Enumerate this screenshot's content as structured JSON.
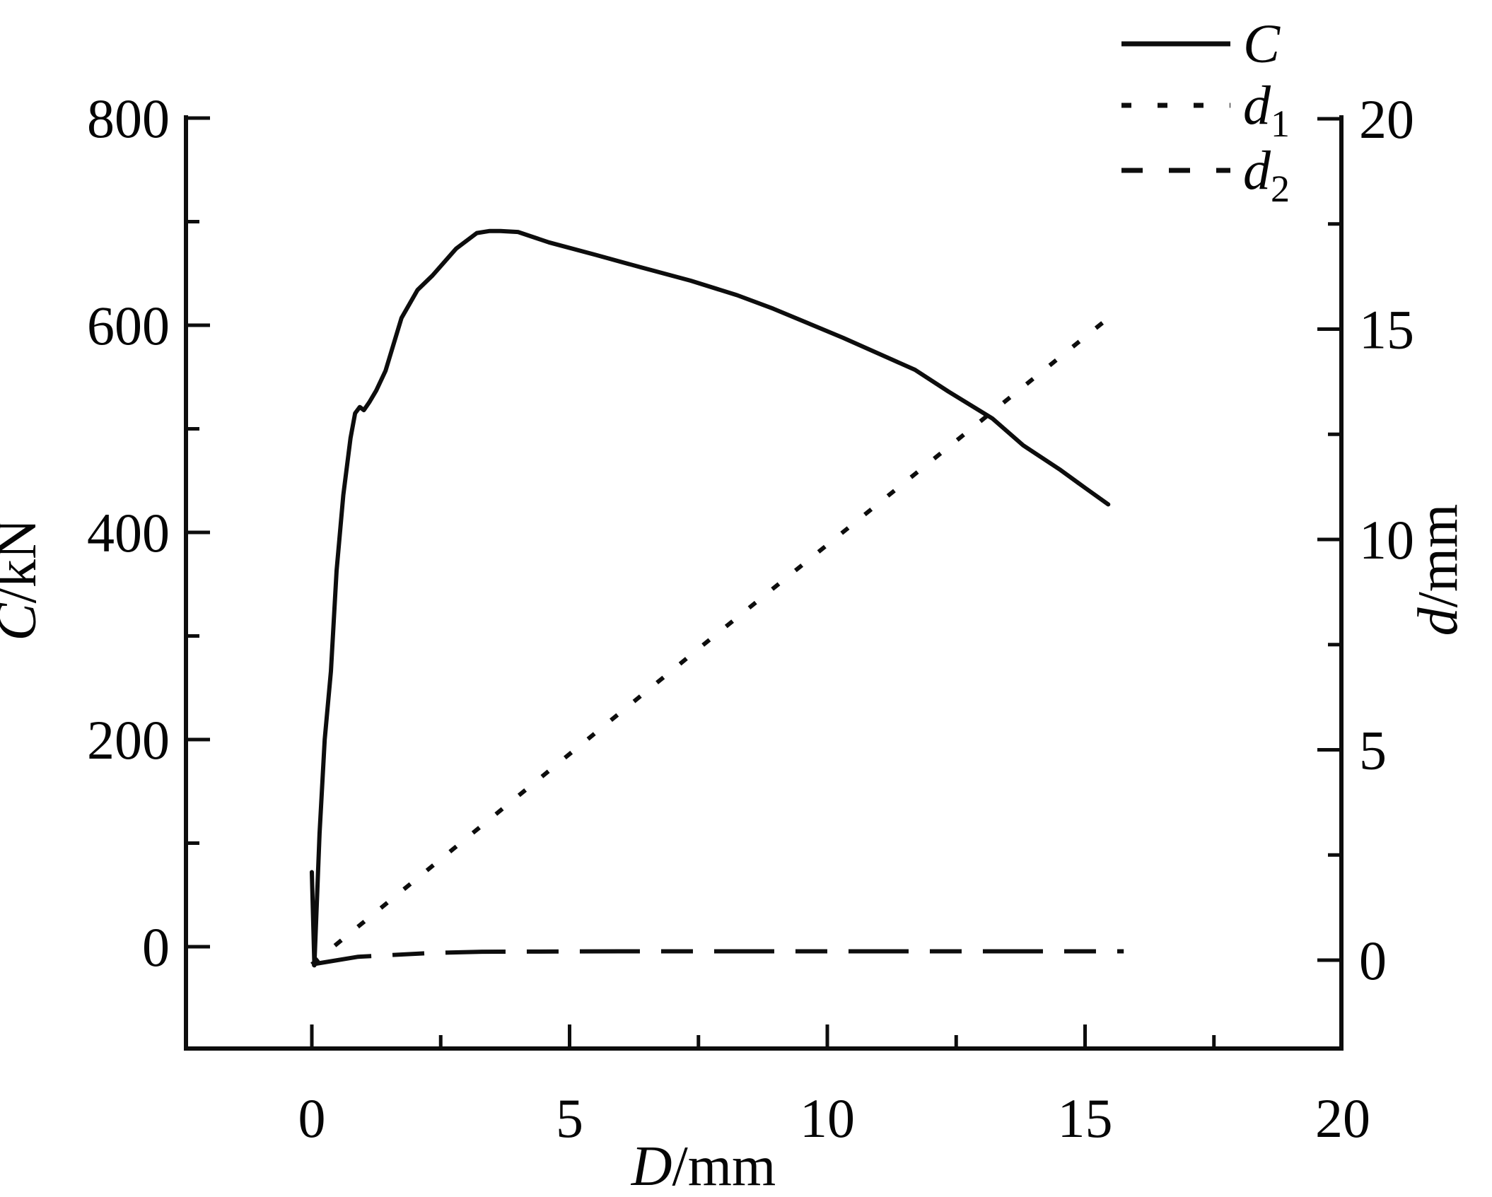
{
  "figure": {
    "background": "#ffffff",
    "ink": "#0d0d0d"
  },
  "chart_data": {
    "type": "line",
    "title": "",
    "grid": false,
    "x_axis": {
      "label_var": "D",
      "label_unit": "/mm",
      "min": -2.45,
      "max": 20.0,
      "major_ticks": [
        0,
        5,
        10,
        15,
        20
      ],
      "minor_ticks": [
        2.5,
        7.5,
        12.5,
        17.5
      ]
    },
    "left_y_axis": {
      "label_var": "C",
      "label_unit": "/kN",
      "min": -98,
      "max": 803,
      "major_ticks": [
        800,
        600,
        400,
        200,
        0
      ],
      "minor_ticks": [
        700,
        500,
        300,
        100
      ]
    },
    "right_y_axis": {
      "label_var": "d",
      "label_unit": "/mm",
      "min": -2.1,
      "max": 20.1,
      "major_ticks": [
        20,
        15,
        10,
        5,
        0
      ],
      "minor_ticks": [
        17.5,
        12.5,
        7.5,
        2.5
      ]
    },
    "legend": {
      "position": "top-right-outside",
      "entries": [
        {
          "label": "C",
          "sub": "",
          "style": "solid",
          "series": "C"
        },
        {
          "label": "d",
          "sub": "1",
          "style": "dotted",
          "series": "d1"
        },
        {
          "label": "d",
          "sub": "2",
          "style": "dashed",
          "series": "d2"
        }
      ]
    },
    "series": [
      {
        "name": "C",
        "axis": "left",
        "style": "solid",
        "points": [
          [
            0,
            72
          ],
          [
            0.05,
            -18
          ],
          [
            0.15,
            109
          ],
          [
            0.25,
            200
          ],
          [
            0.37,
            266
          ],
          [
            0.48,
            363
          ],
          [
            0.61,
            436
          ],
          [
            0.75,
            491
          ],
          [
            0.84,
            515
          ],
          [
            0.93,
            521
          ],
          [
            1.01,
            518
          ],
          [
            1.12,
            526
          ],
          [
            1.25,
            537
          ],
          [
            1.43,
            556
          ],
          [
            1.74,
            607
          ],
          [
            2.05,
            634
          ],
          [
            2.34,
            648
          ],
          [
            2.8,
            674
          ],
          [
            3.2,
            689
          ],
          [
            3.45,
            691
          ],
          [
            3.66,
            691
          ],
          [
            4.0,
            690
          ],
          [
            4.6,
            680
          ],
          [
            5.5,
            668
          ],
          [
            6.45,
            655
          ],
          [
            7.35,
            643
          ],
          [
            8.25,
            629
          ],
          [
            8.95,
            616
          ],
          [
            10.3,
            588
          ],
          [
            11.7,
            557
          ],
          [
            12.35,
            536
          ],
          [
            13.2,
            510
          ],
          [
            13.8,
            484
          ],
          [
            14.5,
            461
          ],
          [
            15.0,
            443
          ],
          [
            15.45,
            427
          ]
        ]
      },
      {
        "name": "d1",
        "axis": "right",
        "style": "dotted",
        "points": [
          [
            0,
            -0.1
          ],
          [
            7.7,
            7.6
          ],
          [
            15.42,
            15.23
          ]
        ]
      },
      {
        "name": "d2",
        "axis": "right",
        "style": "dashed",
        "points": [
          [
            0,
            -0.1
          ],
          [
            0.9,
            0.08
          ],
          [
            2.3,
            0.17
          ],
          [
            3.3,
            0.2
          ],
          [
            6.0,
            0.21
          ],
          [
            15.75,
            0.21
          ]
        ]
      }
    ]
  }
}
